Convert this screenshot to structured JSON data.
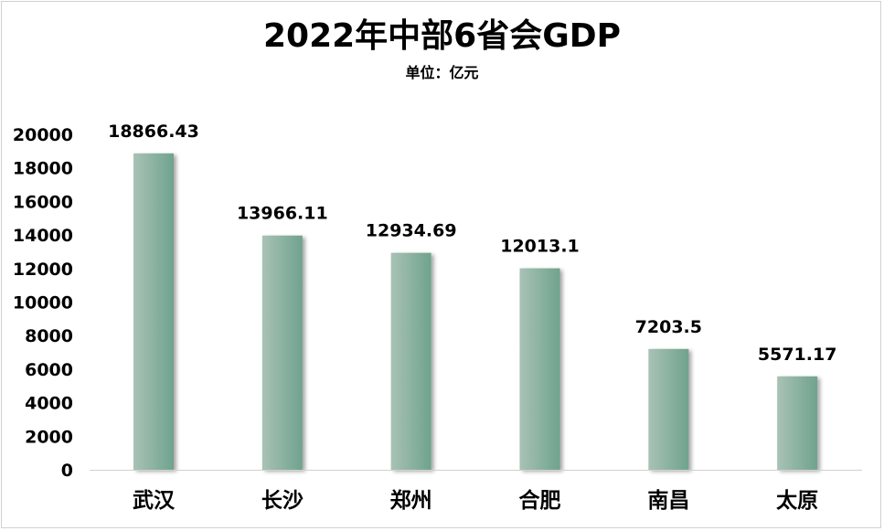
{
  "chart_data": {
    "type": "bar",
    "title": "2022年中部6省会GDP",
    "subtitle": "单位：亿元",
    "categories": [
      "武汉",
      "长沙",
      "郑州",
      "合肥",
      "南昌",
      "太原"
    ],
    "values": [
      18866.43,
      13966.11,
      12934.69,
      12013.1,
      7203.5,
      5571.17
    ],
    "data_labels": [
      "18866.43",
      "13966.11",
      "12934.69",
      "12013.1",
      "7203.5",
      "5571.17"
    ],
    "yticks": [
      0,
      2000,
      4000,
      6000,
      8000,
      10000,
      12000,
      14000,
      16000,
      18000,
      20000
    ],
    "ylim": [
      0,
      20000
    ],
    "xlabel": "",
    "ylabel": "",
    "grid": false,
    "legend": "none",
    "bar_color_light": "#a9c2b5",
    "bar_color_dark": "#6fa38d"
  }
}
